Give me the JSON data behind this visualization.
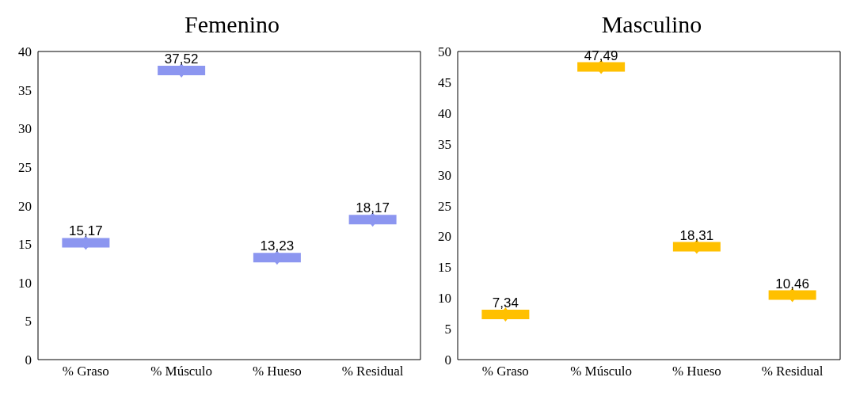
{
  "chart_data": [
    {
      "type": "scatter",
      "title": "Femenino",
      "categories": [
        "% Graso",
        "% Músculo",
        "% Hueso",
        "% Residual"
      ],
      "values": [
        15.17,
        37.52,
        13.23,
        18.17
      ],
      "value_labels": [
        "15,17",
        "37,52",
        "13,23",
        "18,17"
      ],
      "color": "#8c96f0",
      "marker": "diamond",
      "ylim": [
        0,
        40
      ],
      "yticks": [
        0,
        5,
        10,
        15,
        20,
        25,
        30,
        35,
        40
      ]
    },
    {
      "type": "scatter",
      "title": "Masculino",
      "categories": [
        "% Graso",
        "% Músculo",
        "% Hueso",
        "% Residual"
      ],
      "values": [
        7.34,
        47.49,
        18.31,
        10.46
      ],
      "value_labels": [
        "7,34",
        "47,49",
        "18,31",
        "10,46"
      ],
      "color": "#ffc000",
      "marker": "diamond",
      "ylim": [
        0,
        50
      ],
      "yticks": [
        0,
        5,
        10,
        15,
        20,
        25,
        30,
        35,
        40,
        45,
        50
      ]
    }
  ]
}
